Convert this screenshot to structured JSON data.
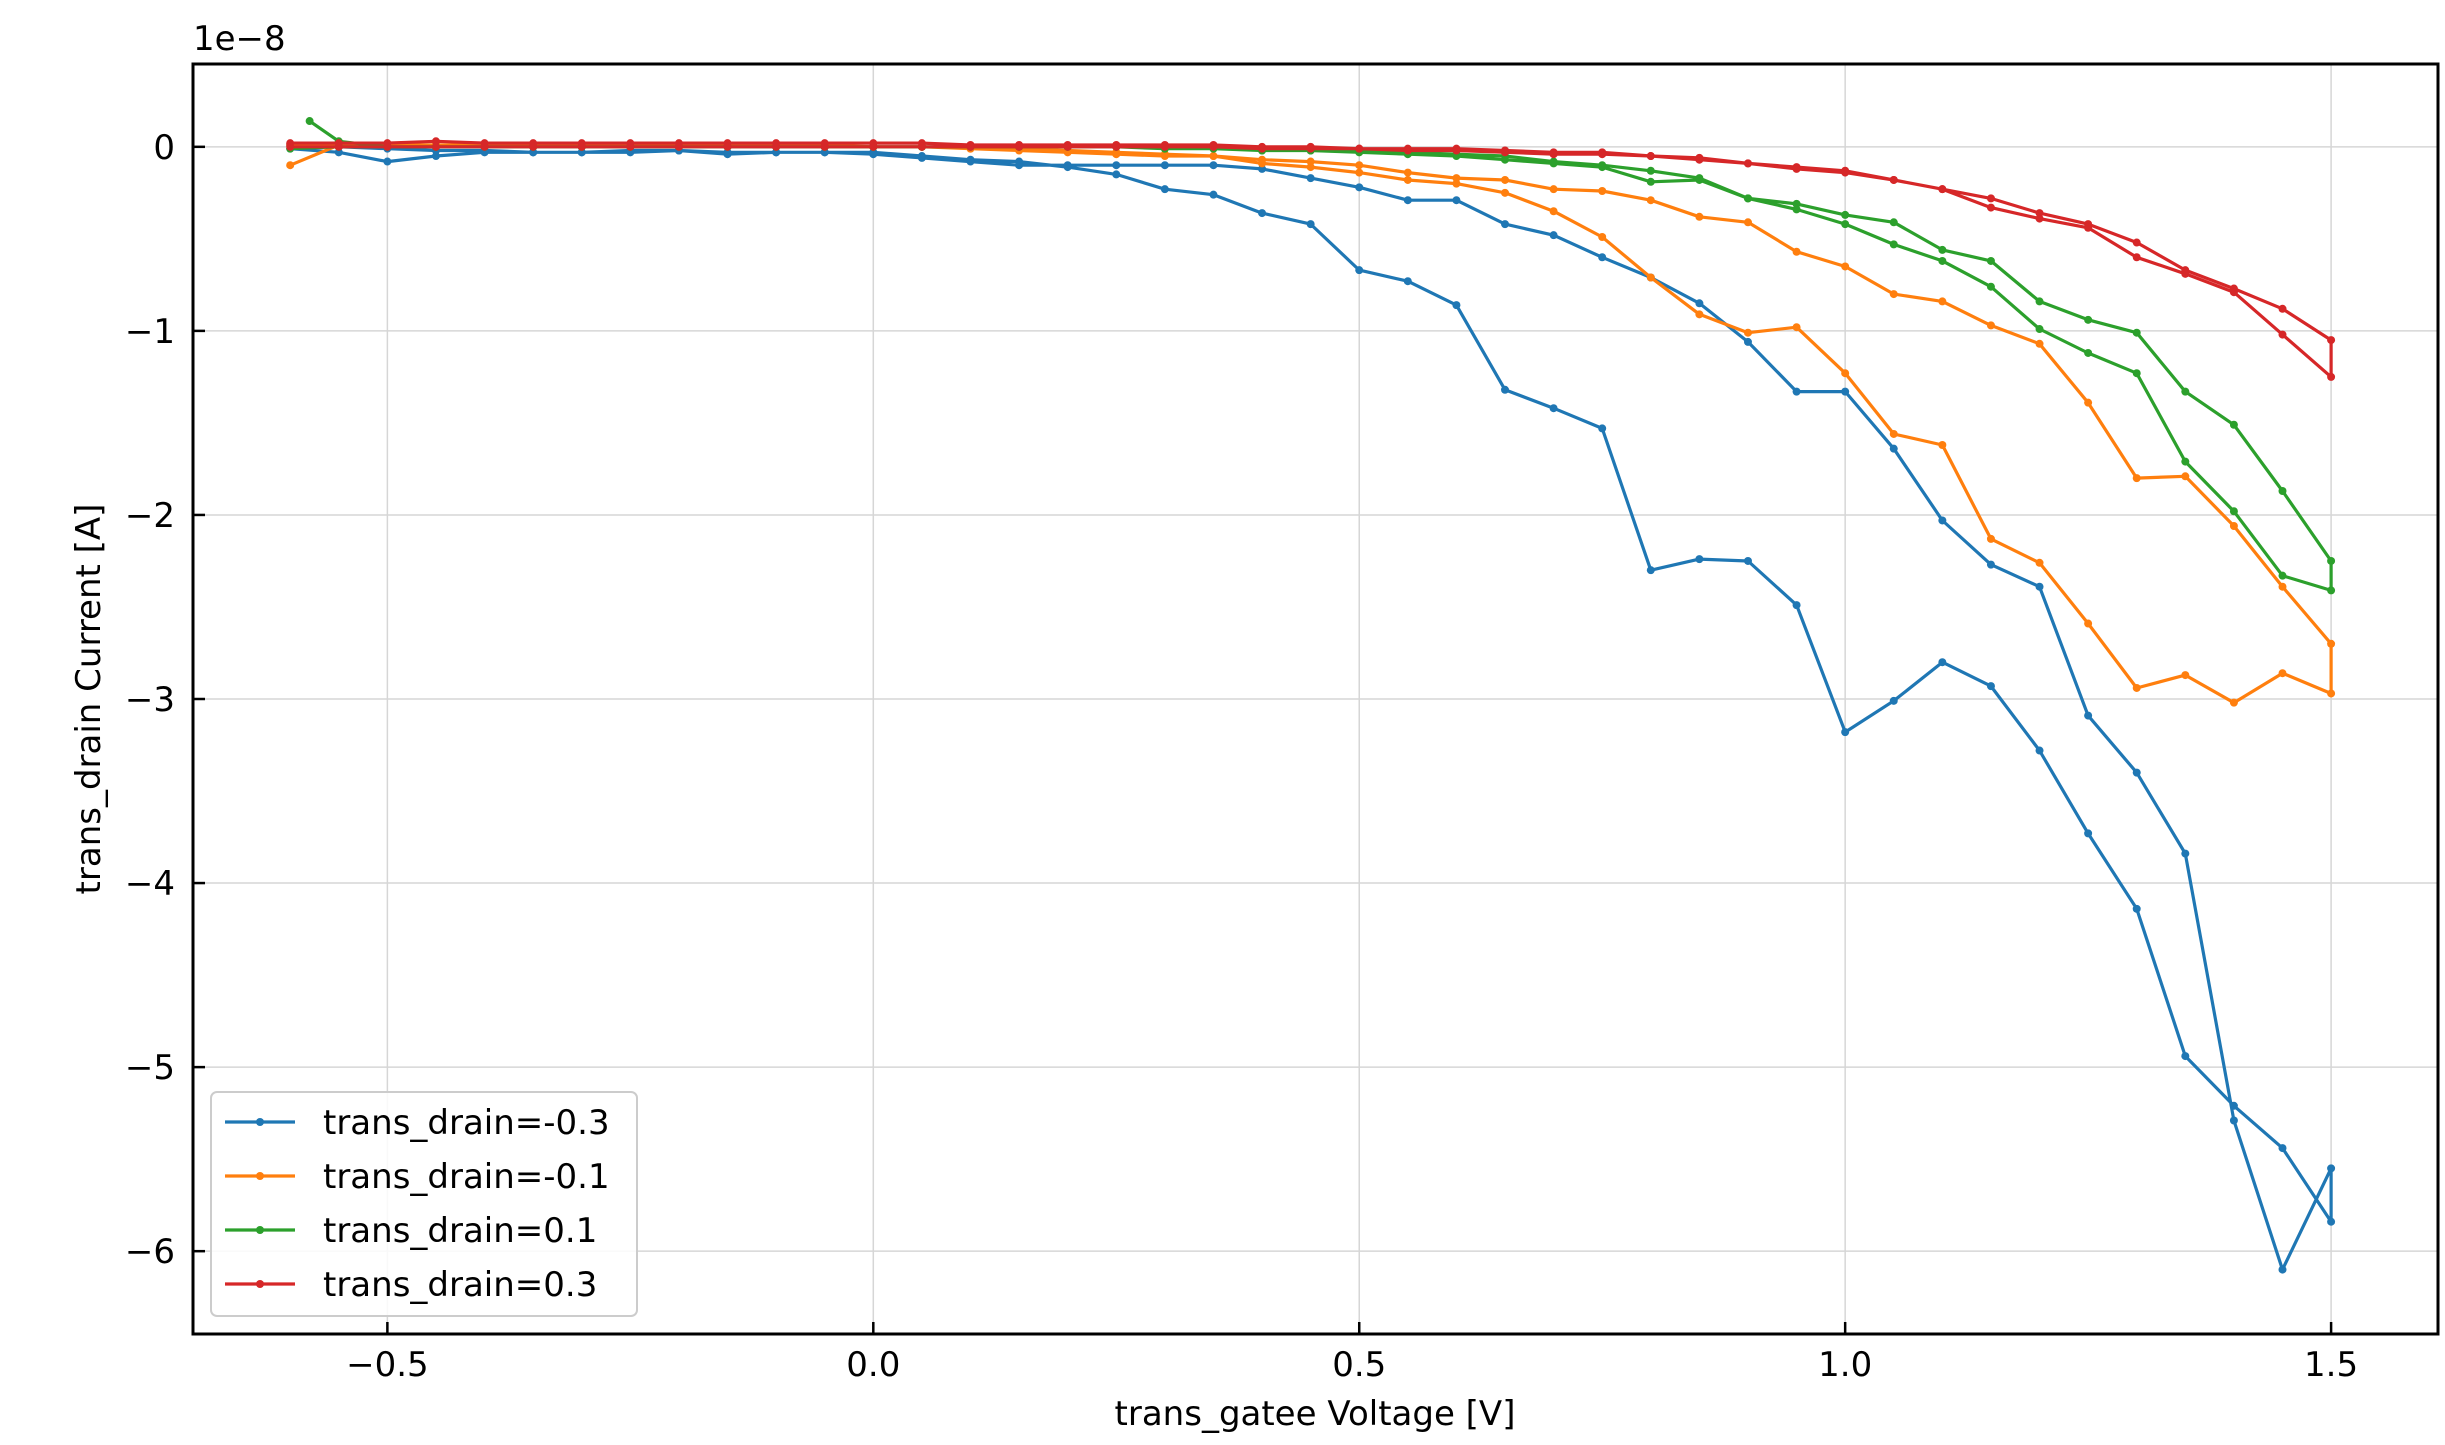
{
  "chart_data": {
    "type": "line",
    "xlabel": "trans_gatee Voltage [V]",
    "ylabel": "trans_drain Current [A]",
    "offset_label": "1e−8",
    "xlim": [
      -0.7,
      1.61
    ],
    "ylim": [
      -6.45,
      0.45
    ],
    "grid": true,
    "legend_position": "lower-left",
    "x_ticks": [
      -0.5,
      0.0,
      0.5,
      1.0,
      1.5
    ],
    "x_tick_labels": [
      "−0.5",
      "0.0",
      "0.5",
      "1.0",
      "1.5"
    ],
    "y_ticks": [
      0,
      -1,
      -2,
      -3,
      -4,
      -5,
      -6
    ],
    "y_tick_labels": [
      "0",
      "−1",
      "−2",
      "−3",
      "−4",
      "−5",
      "−6"
    ],
    "series": [
      {
        "name": "trans_drain=-0.3",
        "color": "#1f77b4",
        "forward": {
          "x": [
            -0.6,
            -0.55,
            -0.5,
            -0.45,
            -0.4,
            -0.35,
            -0.3,
            -0.25,
            -0.2,
            -0.15,
            -0.1,
            -0.05,
            0.0,
            0.05,
            0.1,
            0.15,
            0.2,
            0.25,
            0.3,
            0.35,
            0.4,
            0.45,
            0.5,
            0.55,
            0.6,
            0.65,
            0.7,
            0.75,
            0.8,
            0.85,
            0.9,
            0.95,
            1.0,
            1.05,
            1.1,
            1.15,
            1.2,
            1.25,
            1.3,
            1.35,
            1.4,
            1.45,
            1.5
          ],
          "y": [
            -0.01,
            -0.03,
            -0.08,
            -0.05,
            -0.03,
            -0.03,
            -0.03,
            -0.02,
            -0.02,
            -0.04,
            -0.03,
            -0.03,
            -0.03,
            -0.05,
            -0.07,
            -0.08,
            -0.11,
            -0.15,
            -0.23,
            -0.26,
            -0.36,
            -0.42,
            -0.67,
            -0.73,
            -0.86,
            -1.32,
            -1.42,
            -1.53,
            -2.3,
            -2.24,
            -2.25,
            -2.49,
            -3.18,
            -3.01,
            -2.8,
            -2.93,
            -3.28,
            -3.73,
            -4.14,
            -4.94,
            -5.21,
            -5.44,
            -5.84
          ]
        },
        "reverse": {
          "x": [
            1.5,
            1.45,
            1.4,
            1.35,
            1.3,
            1.25,
            1.2,
            1.15,
            1.1,
            1.05,
            1.0,
            0.95,
            0.9,
            0.85,
            0.8,
            0.75,
            0.7,
            0.65,
            0.6,
            0.55,
            0.5,
            0.45,
            0.4,
            0.35,
            0.3,
            0.25,
            0.2,
            0.15,
            0.1,
            0.05,
            0.0,
            -0.05,
            -0.1,
            -0.15,
            -0.2,
            -0.25,
            -0.3,
            -0.35,
            -0.4,
            -0.45,
            -0.5,
            -0.55,
            -0.6
          ],
          "y": [
            -5.55,
            -6.1,
            -5.29,
            -3.84,
            -3.4,
            -3.09,
            -2.39,
            -2.27,
            -2.03,
            -1.64,
            -1.33,
            -1.33,
            -1.06,
            -0.85,
            -0.71,
            -0.6,
            -0.48,
            -0.42,
            -0.29,
            -0.29,
            -0.22,
            -0.17,
            -0.12,
            -0.1,
            -0.1,
            -0.1,
            -0.1,
            -0.1,
            -0.08,
            -0.06,
            -0.04,
            -0.03,
            -0.03,
            -0.03,
            -0.02,
            -0.03,
            -0.03,
            -0.03,
            -0.02,
            -0.02,
            -0.01,
            0.0,
            0.01
          ]
        }
      },
      {
        "name": "trans_drain=-0.1",
        "color": "#ff7f0e",
        "forward": {
          "x": [
            -0.6,
            -0.55,
            -0.5,
            -0.45,
            -0.4,
            -0.35,
            -0.3,
            -0.25,
            -0.2,
            -0.15,
            -0.1,
            -0.05,
            0.0,
            0.05,
            0.1,
            0.15,
            0.2,
            0.25,
            0.3,
            0.35,
            0.4,
            0.45,
            0.5,
            0.55,
            0.6,
            0.65,
            0.7,
            0.75,
            0.8,
            0.85,
            0.9,
            0.95,
            1.0,
            1.05,
            1.1,
            1.15,
            1.2,
            1.25,
            1.3,
            1.35,
            1.4,
            1.45,
            1.5
          ],
          "y": [
            -0.1,
            0.01,
            0.01,
            0.01,
            0.01,
            0.01,
            0.01,
            0.01,
            0.01,
            0.01,
            0.01,
            0.01,
            0.0,
            0.0,
            -0.01,
            -0.01,
            -0.02,
            -0.03,
            -0.04,
            -0.05,
            -0.07,
            -0.08,
            -0.1,
            -0.14,
            -0.17,
            -0.18,
            -0.23,
            -0.24,
            -0.29,
            -0.38,
            -0.41,
            -0.57,
            -0.65,
            -0.8,
            -0.84,
            -0.97,
            -1.07,
            -1.39,
            -1.8,
            -1.79,
            -2.06,
            -2.39,
            -2.7
          ]
        },
        "reverse": {
          "x": [
            1.5,
            1.45,
            1.4,
            1.35,
            1.3,
            1.25,
            1.2,
            1.15,
            1.1,
            1.05,
            1.0,
            0.95,
            0.9,
            0.85,
            0.8,
            0.75,
            0.7,
            0.65,
            0.6,
            0.55,
            0.5,
            0.45,
            0.4,
            0.35,
            0.3,
            0.25,
            0.2,
            0.15,
            0.1,
            0.05,
            0.0,
            -0.05,
            -0.1,
            -0.15,
            -0.2,
            -0.25,
            -0.3,
            -0.35,
            -0.4,
            -0.45,
            -0.5,
            -0.55,
            -0.6
          ],
          "y": [
            -2.97,
            -2.86,
            -3.02,
            -2.87,
            -2.94,
            -2.59,
            -2.26,
            -2.13,
            -1.62,
            -1.56,
            -1.23,
            -0.98,
            -1.01,
            -0.91,
            -0.71,
            -0.49,
            -0.35,
            -0.25,
            -0.2,
            -0.18,
            -0.14,
            -0.11,
            -0.09,
            -0.05,
            -0.05,
            -0.04,
            -0.03,
            -0.02,
            -0.01,
            0.0,
            0.0,
            0.0,
            0.01,
            0.01,
            0.01,
            0.01,
            0.01,
            0.01,
            0.01,
            0.01,
            0.01,
            0.01,
            0.01
          ]
        }
      },
      {
        "name": "trans_drain=0.1",
        "color": "#2ca02c",
        "forward": {
          "x": [
            -0.58,
            -0.55,
            -0.5,
            -0.45,
            -0.4,
            -0.35,
            -0.3,
            -0.25,
            -0.2,
            -0.15,
            -0.1,
            -0.05,
            0.0,
            0.05,
            0.1,
            0.15,
            0.2,
            0.25,
            0.3,
            0.35,
            0.4,
            0.45,
            0.5,
            0.55,
            0.6,
            0.65,
            0.7,
            0.75,
            0.8,
            0.85,
            0.9,
            0.95,
            1.0,
            1.05,
            1.1,
            1.15,
            1.2,
            1.25,
            1.3,
            1.35,
            1.4,
            1.45,
            1.5
          ],
          "y": [
            0.14,
            0.03,
            0.0,
            0.0,
            0.0,
            0.0,
            0.0,
            0.0,
            0.0,
            0.0,
            0.0,
            0.0,
            0.0,
            0.0,
            0.0,
            0.0,
            0.0,
            0.0,
            -0.01,
            -0.01,
            -0.02,
            -0.02,
            -0.02,
            -0.03,
            -0.04,
            -0.05,
            -0.08,
            -0.1,
            -0.13,
            -0.17,
            -0.28,
            -0.31,
            -0.37,
            -0.41,
            -0.56,
            -0.62,
            -0.84,
            -0.94,
            -1.01,
            -1.33,
            -1.51,
            -1.87,
            -2.25
          ]
        },
        "reverse": {
          "x": [
            1.5,
            1.45,
            1.4,
            1.35,
            1.3,
            1.25,
            1.2,
            1.15,
            1.1,
            1.05,
            1.0,
            0.95,
            0.9,
            0.85,
            0.8,
            0.75,
            0.7,
            0.65,
            0.6,
            0.55,
            0.5,
            0.45,
            0.4,
            0.35,
            0.3,
            0.25,
            0.2,
            0.15,
            0.1,
            0.05,
            0.0,
            -0.05,
            -0.1,
            -0.15,
            -0.2,
            -0.25,
            -0.3,
            -0.35,
            -0.4,
            -0.45,
            -0.5,
            -0.55,
            -0.6
          ],
          "y": [
            -2.41,
            -2.33,
            -1.98,
            -1.71,
            -1.23,
            -1.12,
            -0.99,
            -0.76,
            -0.62,
            -0.53,
            -0.42,
            -0.34,
            -0.28,
            -0.18,
            -0.19,
            -0.11,
            -0.09,
            -0.07,
            -0.05,
            -0.04,
            -0.03,
            -0.02,
            -0.02,
            -0.01,
            -0.01,
            0.0,
            0.0,
            0.0,
            0.0,
            0.0,
            0.0,
            0.0,
            0.0,
            0.0,
            0.0,
            0.0,
            0.0,
            0.0,
            0.0,
            0.0,
            0.0,
            0.0,
            -0.01
          ]
        }
      },
      {
        "name": "trans_drain=0.3",
        "color": "#d62728",
        "forward": {
          "x": [
            -0.6,
            -0.55,
            -0.5,
            -0.45,
            -0.4,
            -0.35,
            -0.3,
            -0.25,
            -0.2,
            -0.15,
            -0.1,
            -0.05,
            0.0,
            0.05,
            0.1,
            0.15,
            0.2,
            0.25,
            0.3,
            0.35,
            0.4,
            0.45,
            0.5,
            0.55,
            0.6,
            0.65,
            0.7,
            0.75,
            0.8,
            0.85,
            0.9,
            0.95,
            1.0,
            1.05,
            1.1,
            1.15,
            1.2,
            1.25,
            1.3,
            1.35,
            1.4,
            1.45,
            1.5
          ],
          "y": [
            0.02,
            0.02,
            0.02,
            0.03,
            0.02,
            0.02,
            0.02,
            0.02,
            0.02,
            0.02,
            0.02,
            0.02,
            0.02,
            0.02,
            0.01,
            0.01,
            0.01,
            0.01,
            0.01,
            0.01,
            0.0,
            0.0,
            -0.01,
            -0.01,
            -0.01,
            -0.02,
            -0.03,
            -0.03,
            -0.05,
            -0.06,
            -0.09,
            -0.11,
            -0.13,
            -0.18,
            -0.23,
            -0.28,
            -0.36,
            -0.42,
            -0.52,
            -0.67,
            -0.77,
            -0.88,
            -1.05
          ]
        },
        "reverse": {
          "x": [
            1.5,
            1.45,
            1.4,
            1.35,
            1.3,
            1.25,
            1.2,
            1.15,
            1.1,
            1.05,
            1.0,
            0.95,
            0.9,
            0.85,
            0.8,
            0.75,
            0.7,
            0.65,
            0.6,
            0.55,
            0.5,
            0.45,
            0.4,
            0.35,
            0.3,
            0.25,
            0.2,
            0.15,
            0.1,
            0.05,
            0.0,
            -0.05,
            -0.1,
            -0.15,
            -0.2,
            -0.25,
            -0.3,
            -0.35,
            -0.4,
            -0.45,
            -0.5,
            -0.55,
            -0.6
          ],
          "y": [
            -1.25,
            -1.02,
            -0.79,
            -0.69,
            -0.6,
            -0.44,
            -0.39,
            -0.33,
            -0.23,
            -0.18,
            -0.14,
            -0.12,
            -0.09,
            -0.07,
            -0.05,
            -0.04,
            -0.04,
            -0.03,
            -0.02,
            -0.02,
            -0.01,
            -0.01,
            -0.01,
            0.0,
            0.0,
            0.0,
            0.0,
            0.0,
            0.0,
            0.0,
            0.0,
            0.0,
            0.0,
            0.0,
            0.0,
            0.0,
            0.0,
            0.0,
            0.0,
            0.0,
            0.0,
            0.0,
            0.0
          ]
        }
      }
    ]
  }
}
